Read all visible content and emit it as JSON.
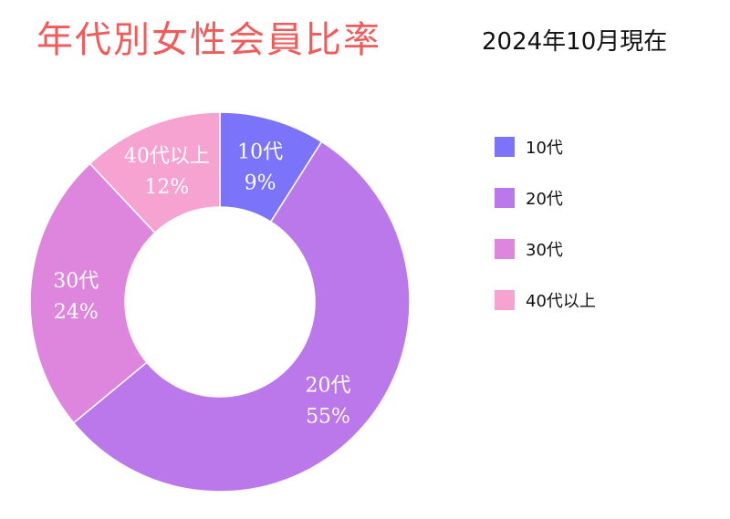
{
  "title": "年代別女性会員比率",
  "date_label": "2024年10月現在",
  "chart_data": {
    "type": "pie",
    "donut": true,
    "categories": [
      "10代",
      "20代",
      "30代",
      "40代以上"
    ],
    "values": [
      9,
      55,
      24,
      12
    ],
    "unit": "%",
    "colors": [
      "#7b74fb",
      "#bb78ea",
      "#de86dd",
      "#f6a3d2"
    ],
    "legend_position": "right"
  }
}
